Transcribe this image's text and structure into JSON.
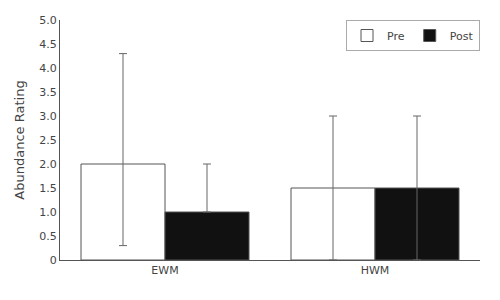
{
  "chart_data": {
    "type": "bar",
    "categories": [
      "EWM",
      "HWM"
    ],
    "series": [
      {
        "name": "Pre",
        "color": "#ffffff",
        "values": [
          2.0,
          1.5
        ],
        "error_plus": [
          2.3,
          1.5
        ],
        "error_minus": [
          1.7,
          1.5
        ]
      },
      {
        "name": "Post",
        "color": "#111111",
        "values": [
          1.0,
          1.5
        ],
        "error_plus": [
          1.0,
          1.5
        ],
        "error_minus": [
          0.0,
          1.5
        ]
      }
    ],
    "ylabel": "Abundance Rating",
    "ylim": [
      0,
      5
    ],
    "yticks": [
      0,
      0.5,
      {
        "value": 1,
        "label": "1.0"
      },
      1.5,
      {
        "value": 2,
        "label": "2.0"
      },
      2.5,
      {
        "value": 3,
        "label": "3.0"
      },
      3.5,
      {
        "value": 4,
        "label": "4.0"
      },
      4.5,
      {
        "value": 5,
        "label": "5.0"
      }
    ],
    "grid": false,
    "legend": "upper right"
  }
}
